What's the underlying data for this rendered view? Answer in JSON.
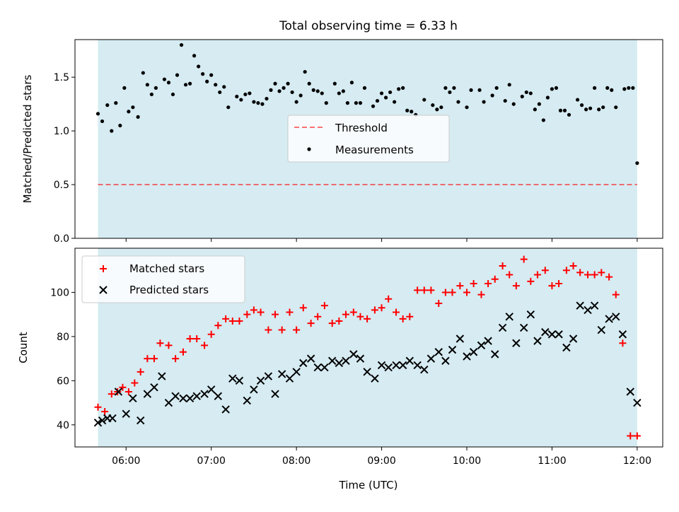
{
  "title": "Total observing time = 6.33 h",
  "colors": {
    "shade": "#add8e6",
    "threshold": "#ff0000",
    "matched": "#ff0000",
    "predicted": "#000000",
    "measurement": "#000000"
  },
  "chart_data": [
    {
      "type": "scatter",
      "title": "Total observing time = 6.33 h",
      "ylabel": "Matched/Predicted stars",
      "xlabel": "",
      "x_range_hours": [
        5.4,
        12.3
      ],
      "ylim": [
        0,
        1.85
      ],
      "ytick_labels": [
        "0.0",
        "0.5",
        "1.0",
        "1.5"
      ],
      "ytick_values": [
        0.0,
        0.5,
        1.0,
        1.5
      ],
      "shaded_span_hours": [
        5.67,
        12.0
      ],
      "threshold": {
        "name": "Threshold",
        "value": 0.5,
        "style": "dashed"
      },
      "legend_position": "center",
      "series": [
        {
          "name": "Measurements",
          "x_hours": [
            5.67,
            5.72,
            5.78,
            5.83,
            5.88,
            5.93,
            5.98,
            6.03,
            6.08,
            6.14,
            6.2,
            6.25,
            6.3,
            6.35,
            6.45,
            6.5,
            6.55,
            6.6,
            6.65,
            6.7,
            6.75,
            6.8,
            6.85,
            6.9,
            6.95,
            7.0,
            7.05,
            7.1,
            7.15,
            7.2,
            7.3,
            7.35,
            7.4,
            7.45,
            7.5,
            7.55,
            7.6,
            7.65,
            7.7,
            7.75,
            7.8,
            7.85,
            7.9,
            7.95,
            8.0,
            8.05,
            8.1,
            8.15,
            8.2,
            8.25,
            8.3,
            8.35,
            8.45,
            8.5,
            8.55,
            8.6,
            8.65,
            8.7,
            8.75,
            8.8,
            8.9,
            8.95,
            9.0,
            9.05,
            9.1,
            9.15,
            9.2,
            9.25,
            9.3,
            9.35,
            9.4,
            9.5,
            9.6,
            9.65,
            9.7,
            9.75,
            9.8,
            9.85,
            9.9,
            10.0,
            10.05,
            10.15,
            10.2,
            10.3,
            10.35,
            10.45,
            10.5,
            10.55,
            10.65,
            10.7,
            10.75,
            10.8,
            10.85,
            10.9,
            10.95,
            11.0,
            11.05,
            11.1,
            11.15,
            11.2,
            11.3,
            11.35,
            11.4,
            11.45,
            11.5,
            11.55,
            11.6,
            11.65,
            11.7,
            11.75,
            11.85,
            11.9,
            11.95,
            12.0
          ],
          "y": [
            1.16,
            1.09,
            1.24,
            1.0,
            1.26,
            1.05,
            1.4,
            1.18,
            1.22,
            1.13,
            1.54,
            1.43,
            1.34,
            1.4,
            1.48,
            1.45,
            1.34,
            1.52,
            1.8,
            1.43,
            1.44,
            1.7,
            1.6,
            1.53,
            1.46,
            1.52,
            1.43,
            1.36,
            1.41,
            1.22,
            1.32,
            1.29,
            1.34,
            1.35,
            1.27,
            1.26,
            1.25,
            1.3,
            1.38,
            1.44,
            1.37,
            1.4,
            1.44,
            1.36,
            1.27,
            1.33,
            1.55,
            1.44,
            1.38,
            1.37,
            1.35,
            1.26,
            1.44,
            1.35,
            1.37,
            1.26,
            1.45,
            1.26,
            1.26,
            1.4,
            1.23,
            1.28,
            1.35,
            1.31,
            1.36,
            1.27,
            1.39,
            1.4,
            1.19,
            1.18,
            1.15,
            1.29,
            1.24,
            1.2,
            1.22,
            1.4,
            1.36,
            1.4,
            1.27,
            1.22,
            1.38,
            1.38,
            1.27,
            1.33,
            1.4,
            1.28,
            1.43,
            1.25,
            1.32,
            1.36,
            1.35,
            1.2,
            1.25,
            1.1,
            1.31,
            1.39,
            1.4,
            1.19,
            1.19,
            1.15,
            1.29,
            1.24,
            1.2,
            1.21,
            1.4,
            1.2,
            1.22,
            1.4,
            1.38,
            1.22,
            1.39,
            1.4,
            1.4,
            0.7
          ]
        }
      ]
    },
    {
      "type": "scatter",
      "ylabel": "Count",
      "xlabel": "Time (UTC)",
      "x_range_hours": [
        5.4,
        12.3
      ],
      "xtick_labels": [
        "06:00",
        "07:00",
        "08:00",
        "09:00",
        "10:00",
        "11:00",
        "12:00"
      ],
      "xtick_values_hours": [
        6,
        7,
        8,
        9,
        10,
        11,
        12
      ],
      "ylim": [
        30,
        120
      ],
      "ytick_labels": [
        "40",
        "60",
        "80",
        "100"
      ],
      "ytick_values": [
        40,
        60,
        80,
        100
      ],
      "shaded_span_hours": [
        5.67,
        12.0
      ],
      "legend_position": "upper left",
      "series": [
        {
          "name": "Matched stars",
          "marker": "plus",
          "x_hours": [
            5.67,
            5.75,
            5.83,
            5.9,
            5.96,
            6.03,
            6.1,
            6.17,
            6.25,
            6.33,
            6.4,
            6.5,
            6.58,
            6.67,
            6.75,
            6.83,
            6.92,
            7.0,
            7.08,
            7.17,
            7.25,
            7.33,
            7.42,
            7.5,
            7.58,
            7.67,
            7.75,
            7.83,
            7.92,
            8.0,
            8.08,
            8.17,
            8.25,
            8.33,
            8.42,
            8.5,
            8.58,
            8.67,
            8.75,
            8.83,
            8.92,
            9.0,
            9.08,
            9.17,
            9.25,
            9.33,
            9.42,
            9.5,
            9.58,
            9.67,
            9.75,
            9.83,
            9.92,
            10.0,
            10.08,
            10.17,
            10.25,
            10.33,
            10.42,
            10.5,
            10.58,
            10.67,
            10.75,
            10.83,
            10.92,
            11.0,
            11.08,
            11.17,
            11.25,
            11.33,
            11.42,
            11.5,
            11.58,
            11.67,
            11.75,
            11.83,
            11.92,
            12.0
          ],
          "y": [
            48,
            46,
            54,
            55,
            57,
            55,
            59,
            64,
            70,
            70,
            77,
            76,
            70,
            73,
            79,
            79,
            76,
            81,
            85,
            88,
            87,
            87,
            90,
            92,
            91,
            83,
            90,
            83,
            91,
            83,
            93,
            86,
            89,
            94,
            86,
            87,
            90,
            91,
            89,
            88,
            92,
            93,
            97,
            91,
            88,
            89,
            101,
            101,
            101,
            95,
            100,
            100,
            103,
            100,
            104,
            99,
            104,
            106,
            112,
            108,
            103,
            115,
            105,
            108,
            110,
            103,
            104,
            110,
            112,
            109,
            108,
            108,
            109,
            107,
            99,
            77,
            35,
            35
          ]
        },
        {
          "name": "Predicted stars",
          "marker": "x",
          "x_hours": [
            5.67,
            5.72,
            5.78,
            5.84,
            5.91,
            6.0,
            6.08,
            6.17,
            6.25,
            6.33,
            6.42,
            6.5,
            6.58,
            6.67,
            6.75,
            6.83,
            6.92,
            7.0,
            7.08,
            7.17,
            7.25,
            7.33,
            7.42,
            7.5,
            7.58,
            7.67,
            7.75,
            7.83,
            7.92,
            8.0,
            8.08,
            8.17,
            8.25,
            8.33,
            8.42,
            8.5,
            8.58,
            8.67,
            8.75,
            8.83,
            8.92,
            9.0,
            9.08,
            9.17,
            9.25,
            9.33,
            9.42,
            9.5,
            9.58,
            9.67,
            9.75,
            9.83,
            9.92,
            10.0,
            10.08,
            10.17,
            10.25,
            10.33,
            10.42,
            10.5,
            10.58,
            10.67,
            10.75,
            10.83,
            10.92,
            11.0,
            11.08,
            11.17,
            11.25,
            11.33,
            11.42,
            11.5,
            11.58,
            11.67,
            11.75,
            11.83,
            11.92,
            12.0
          ],
          "y": [
            41,
            42,
            43,
            43,
            55,
            45,
            52,
            42,
            54,
            57,
            62,
            50,
            53,
            52,
            52,
            53,
            54,
            56,
            53,
            47,
            61,
            60,
            51,
            56,
            60,
            62,
            54,
            63,
            61,
            64,
            68,
            70,
            66,
            66,
            69,
            68,
            69,
            72,
            70,
            64,
            61,
            67,
            66,
            67,
            67,
            69,
            67,
            65,
            70,
            73,
            69,
            74,
            79,
            71,
            73,
            76,
            78,
            72,
            84,
            89,
            77,
            84,
            90,
            78,
            82,
            81,
            81,
            75,
            79,
            94,
            92,
            94,
            83,
            88,
            89,
            81,
            55,
            50
          ]
        }
      ]
    }
  ]
}
